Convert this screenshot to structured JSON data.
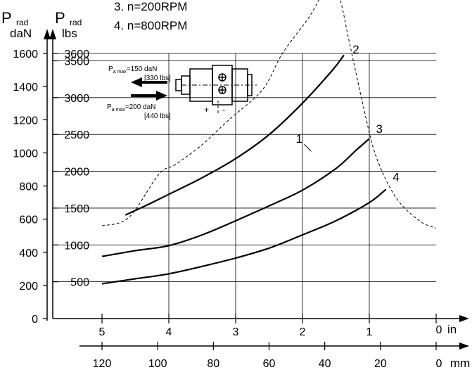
{
  "chart_data": {
    "type": "line",
    "legend": [
      {
        "key": "series_3",
        "text": "3. n=200RPM"
      },
      {
        "key": "series_4",
        "text": "4. n=800RPM"
      }
    ],
    "y_axis_daN": {
      "label_main": "P",
      "label_sub": "rad",
      "unit": "daN",
      "range": [
        0,
        1600
      ],
      "ticks": [
        "0",
        "200",
        "400",
        "600",
        "800",
        "1000",
        "1200",
        "1400",
        "1600"
      ]
    },
    "y_axis_lbs": {
      "label_main": "P",
      "label_sub": "rad",
      "unit": "lbs",
      "range": [
        0,
        3600
      ],
      "ticks": [
        "500",
        "1000",
        "1500",
        "2000",
        "2500",
        "3000",
        "3500",
        "3600"
      ]
    },
    "x_axis_in": {
      "unit": "in",
      "range": [
        5,
        0
      ],
      "ticks": [
        "5",
        "4",
        "3",
        "2",
        "1",
        "0"
      ]
    },
    "x_axis_mm": {
      "unit": "mm",
      "range": [
        120,
        0
      ],
      "ticks": [
        "120",
        "100",
        "80",
        "60",
        "40",
        "20",
        "0"
      ]
    },
    "inset": {
      "label_top": "P",
      "label_top_sub": "a max",
      "label_top_val": "=150 daN",
      "label_top_lbs": "[330 lbs]",
      "label_bot": "P",
      "label_bot_sub": "a max",
      "label_bot_val": "=200 daN",
      "label_bot_lbs": "[440 lbs]",
      "plus": "+",
      "minus": "-"
    },
    "series": [
      {
        "name": "1",
        "label": "1",
        "style": "dashed",
        "points": [
          [
            5,
            560
          ],
          [
            4.6,
            610
          ],
          [
            4.15,
            870
          ],
          [
            3.9,
            930
          ],
          [
            3.5,
            1050
          ],
          [
            3.1,
            1200
          ],
          [
            2.6,
            1380
          ],
          [
            2.3,
            1600
          ],
          [
            1.9,
            1820
          ],
          [
            1.7,
            1960
          ],
          [
            1.6,
            1980
          ],
          [
            1.45,
            1940
          ],
          [
            1.3,
            1670
          ],
          [
            1.1,
            1300
          ],
          [
            0.9,
            980
          ],
          [
            0.6,
            730
          ],
          [
            0.25,
            590
          ],
          [
            0,
            545
          ]
        ],
        "label_at": [
          2.1,
          1060
        ]
      },
      {
        "name": "2",
        "label": "2",
        "style": "solid",
        "points": [
          [
            4.65,
            625
          ],
          [
            4.3,
            690
          ],
          [
            4.0,
            750
          ],
          [
            3.5,
            850
          ],
          [
            3.0,
            965
          ],
          [
            2.5,
            1110
          ],
          [
            2.0,
            1300
          ],
          [
            1.55,
            1500
          ],
          [
            1.38,
            1590
          ]
        ],
        "label_at": [
          1.25,
          1600
        ]
      },
      {
        "name": "3",
        "label": "3",
        "style": "solid",
        "points": [
          [
            5,
            375
          ],
          [
            4.5,
            410
          ],
          [
            4.0,
            440
          ],
          [
            3.5,
            505
          ],
          [
            3.0,
            590
          ],
          [
            2.5,
            680
          ],
          [
            2.0,
            775
          ],
          [
            1.5,
            905
          ],
          [
            1.2,
            1015
          ],
          [
            1.0,
            1085
          ]
        ],
        "label_at": [
          0.9,
          1120
        ]
      },
      {
        "name": "4",
        "label": "4",
        "style": "solid",
        "points": [
          [
            5,
            210
          ],
          [
            4.5,
            240
          ],
          [
            4.0,
            270
          ],
          [
            3.5,
            315
          ],
          [
            3.0,
            365
          ],
          [
            2.5,
            425
          ],
          [
            2.0,
            505
          ],
          [
            1.5,
            590
          ],
          [
            1.0,
            700
          ],
          [
            0.75,
            780
          ]
        ],
        "label_at": [
          0.65,
          830
        ]
      }
    ]
  }
}
